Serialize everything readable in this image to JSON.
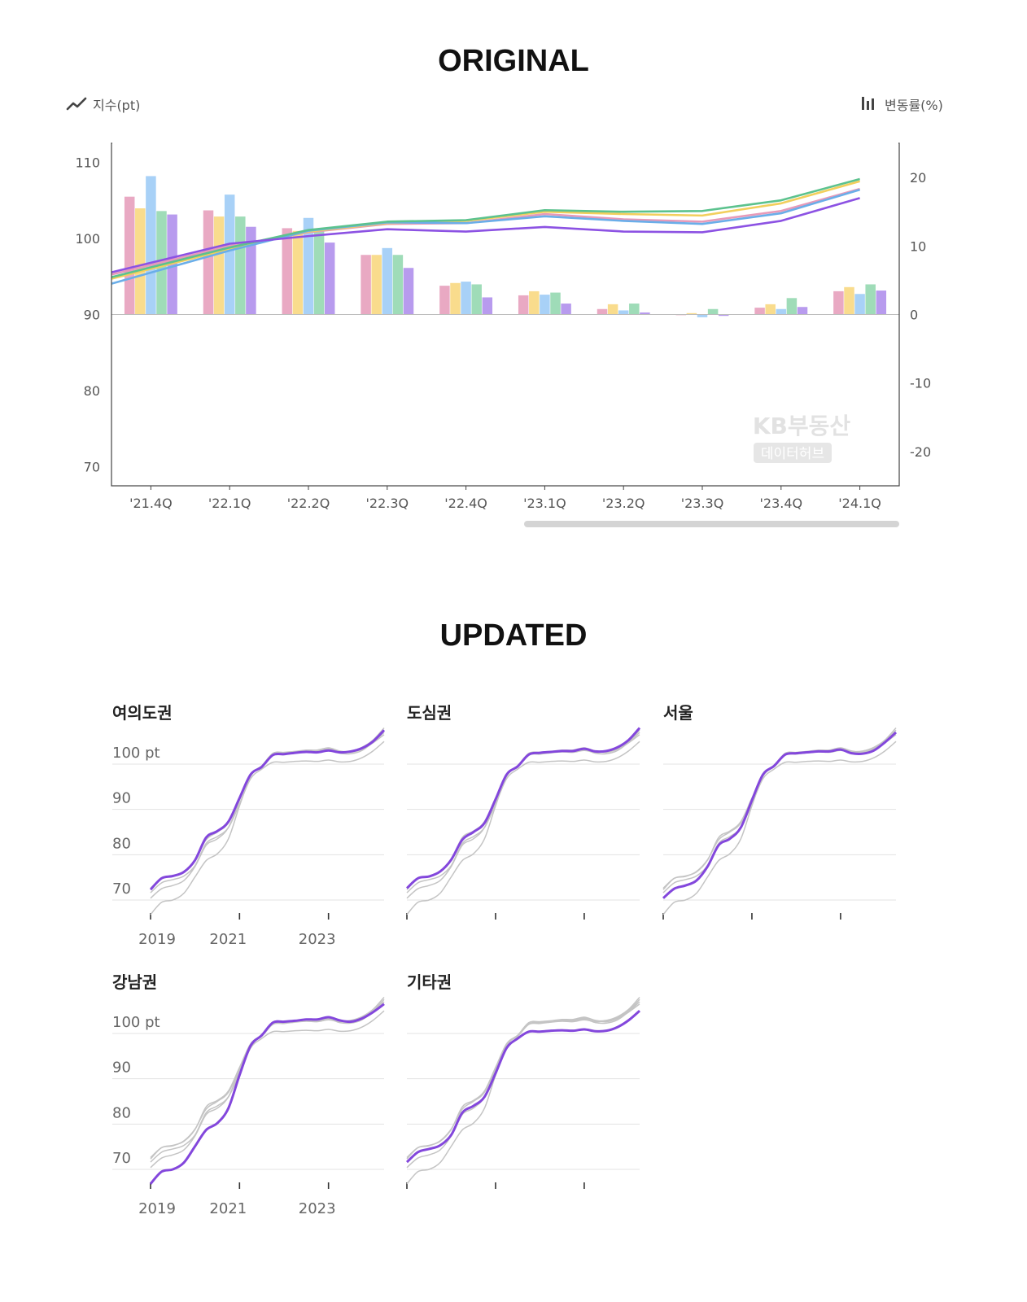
{
  "headings": {
    "original": "ORIGINAL",
    "updated": "UPDATED"
  },
  "colors": {
    "pink": "#e9a9c3",
    "yellow": "#f9dc8d",
    "blue": "#a8d1f7",
    "green": "#9fdcb8",
    "purple": "#b89bee",
    "line_pink": "#e79ab9",
    "line_yellow": "#f2cf5c",
    "line_blue": "#6aaee9",
    "line_green": "#5cc28e",
    "line_purple": "#8c52e3",
    "highlight": "#8347dc",
    "context": "#c4c4c4",
    "grid": "#e3e3e3",
    "axis": "#444444",
    "tick_text": "#555555"
  },
  "original": {
    "legend_left": "지수(pt)",
    "legend_right": "변동률(%)",
    "legend_left_icon": "line-chart-icon",
    "legend_right_icon": "bar-chart-icon",
    "watermark_line1": "KB부동산",
    "watermark_line2": "데이터허브"
  },
  "chart_data": [
    {
      "type": "bar",
      "name": "original",
      "categories": [
        "'21.4Q",
        "'22.1Q",
        "'22.2Q",
        "'22.3Q",
        "'22.4Q",
        "'23.1Q",
        "'23.2Q",
        "'23.3Q",
        "'23.4Q",
        "'24.1Q"
      ],
      "left_axis": {
        "ticks": [
          110,
          100,
          90,
          80,
          70
        ],
        "ylim": [
          67.5,
          112.5
        ],
        "unit_label": "지수(pt)"
      },
      "right_axis": {
        "ticks": [
          20,
          10,
          0,
          -10,
          -20
        ],
        "ylim": [
          -25,
          25
        ],
        "unit_label": "변동률(%)"
      },
      "bar_series": [
        {
          "color_key": "pink",
          "values": [
            17.2,
            15.2,
            12.6,
            8.7,
            4.2,
            2.8,
            0.8,
            -0.1,
            1.0,
            3.4
          ]
        },
        {
          "color_key": "yellow",
          "values": [
            15.5,
            14.3,
            12.2,
            8.7,
            4.6,
            3.4,
            1.5,
            0.2,
            1.5,
            4.0
          ]
        },
        {
          "color_key": "blue",
          "values": [
            20.2,
            17.5,
            14.1,
            9.7,
            4.8,
            2.9,
            0.6,
            -0.4,
            0.8,
            3.0
          ]
        },
        {
          "color_key": "green",
          "values": [
            15.1,
            14.3,
            12.4,
            8.7,
            4.4,
            3.2,
            1.6,
            0.8,
            2.4,
            4.4
          ]
        },
        {
          "color_key": "purple",
          "values": [
            14.6,
            12.8,
            10.5,
            6.8,
            2.5,
            1.6,
            0.3,
            -0.2,
            1.1,
            3.5
          ]
        }
      ],
      "line_series": [
        {
          "color_key": "line_pink",
          "values": [
            96.5,
            99.0,
            100.8,
            101.9,
            102.0,
            103.2,
            102.5,
            102.2,
            103.6,
            106.5
          ]
        },
        {
          "color_key": "line_yellow",
          "values": [
            96.0,
            98.6,
            100.9,
            102.0,
            102.3,
            103.5,
            103.2,
            103.0,
            104.6,
            107.5
          ]
        },
        {
          "color_key": "line_blue",
          "values": [
            95.5,
            98.4,
            101.0,
            102.1,
            102.0,
            102.9,
            102.3,
            101.9,
            103.3,
            106.4
          ]
        },
        {
          "color_key": "line_green",
          "values": [
            96.2,
            98.8,
            101.1,
            102.2,
            102.4,
            103.7,
            103.5,
            103.6,
            105.0,
            107.8
          ]
        },
        {
          "color_key": "line_purple",
          "values": [
            96.8,
            99.3,
            100.3,
            101.2,
            100.9,
            101.5,
            100.9,
            100.8,
            102.3,
            105.3
          ]
        }
      ]
    },
    {
      "type": "line",
      "name": "updated-small-multiples",
      "unit": "pt",
      "y_ticks": [
        "100 pt",
        "90",
        "80",
        "70"
      ],
      "y_tick_values": [
        100,
        90,
        80,
        70
      ],
      "ylim": [
        65.5,
        108.5
      ],
      "x_ticks": [
        "2019",
        "2021",
        "2023"
      ],
      "x_tick_values": [
        2019,
        2021,
        2023
      ],
      "xlim": [
        2019,
        2024.25
      ],
      "x": [
        2019.0,
        2019.25,
        2019.5,
        2019.75,
        2020.0,
        2020.25,
        2020.5,
        2020.75,
        2021.0,
        2021.25,
        2021.5,
        2021.75,
        2022.0,
        2022.25,
        2022.5,
        2022.75,
        2023.0,
        2023.25,
        2023.5,
        2023.75,
        2024.0,
        2024.25
      ],
      "series": [
        {
          "name": "여의도권",
          "values": [
            72.3,
            74.8,
            75.3,
            76.2,
            78.8,
            83.8,
            85.2,
            87.3,
            92.5,
            97.7,
            99.4,
            102.0,
            102.2,
            102.5,
            102.7,
            102.6,
            103.0,
            102.6,
            102.8,
            103.5,
            105.0,
            107.5
          ]
        },
        {
          "name": "도심권",
          "values": [
            72.6,
            74.8,
            75.2,
            76.3,
            78.9,
            83.3,
            85.0,
            87.0,
            92.2,
            97.7,
            99.5,
            102.1,
            102.5,
            102.7,
            102.9,
            102.9,
            103.4,
            102.8,
            102.9,
            103.7,
            105.3,
            108.0
          ]
        },
        {
          "name": "서울",
          "values": [
            70.4,
            72.5,
            73.2,
            74.3,
            77.4,
            82.1,
            83.5,
            86.0,
            92.0,
            97.7,
            99.6,
            102.1,
            102.4,
            102.6,
            102.8,
            102.8,
            103.2,
            102.4,
            102.3,
            103.0,
            104.8,
            107.0
          ]
        },
        {
          "name": "강남권",
          "values": [
            66.8,
            69.5,
            70.0,
            71.5,
            75.1,
            78.7,
            80.2,
            83.5,
            90.8,
            97.3,
            99.6,
            102.4,
            102.6,
            102.8,
            103.1,
            103.1,
            103.6,
            102.9,
            102.6,
            103.3,
            104.7,
            106.5
          ]
        },
        {
          "name": "기타권",
          "values": [
            71.6,
            73.8,
            74.5,
            75.3,
            77.6,
            82.5,
            84.0,
            86.0,
            91.2,
            96.8,
            98.9,
            100.4,
            100.4,
            100.6,
            100.7,
            100.6,
            100.9,
            100.5,
            100.6,
            101.4,
            102.9,
            105.0
          ]
        }
      ]
    }
  ],
  "panels": {
    "p0": {
      "title": "여의도권"
    },
    "p1": {
      "title": "도심권"
    },
    "p2": {
      "title": "서울"
    },
    "p3": {
      "title": "강남권"
    },
    "p4": {
      "title": "기타권"
    }
  }
}
